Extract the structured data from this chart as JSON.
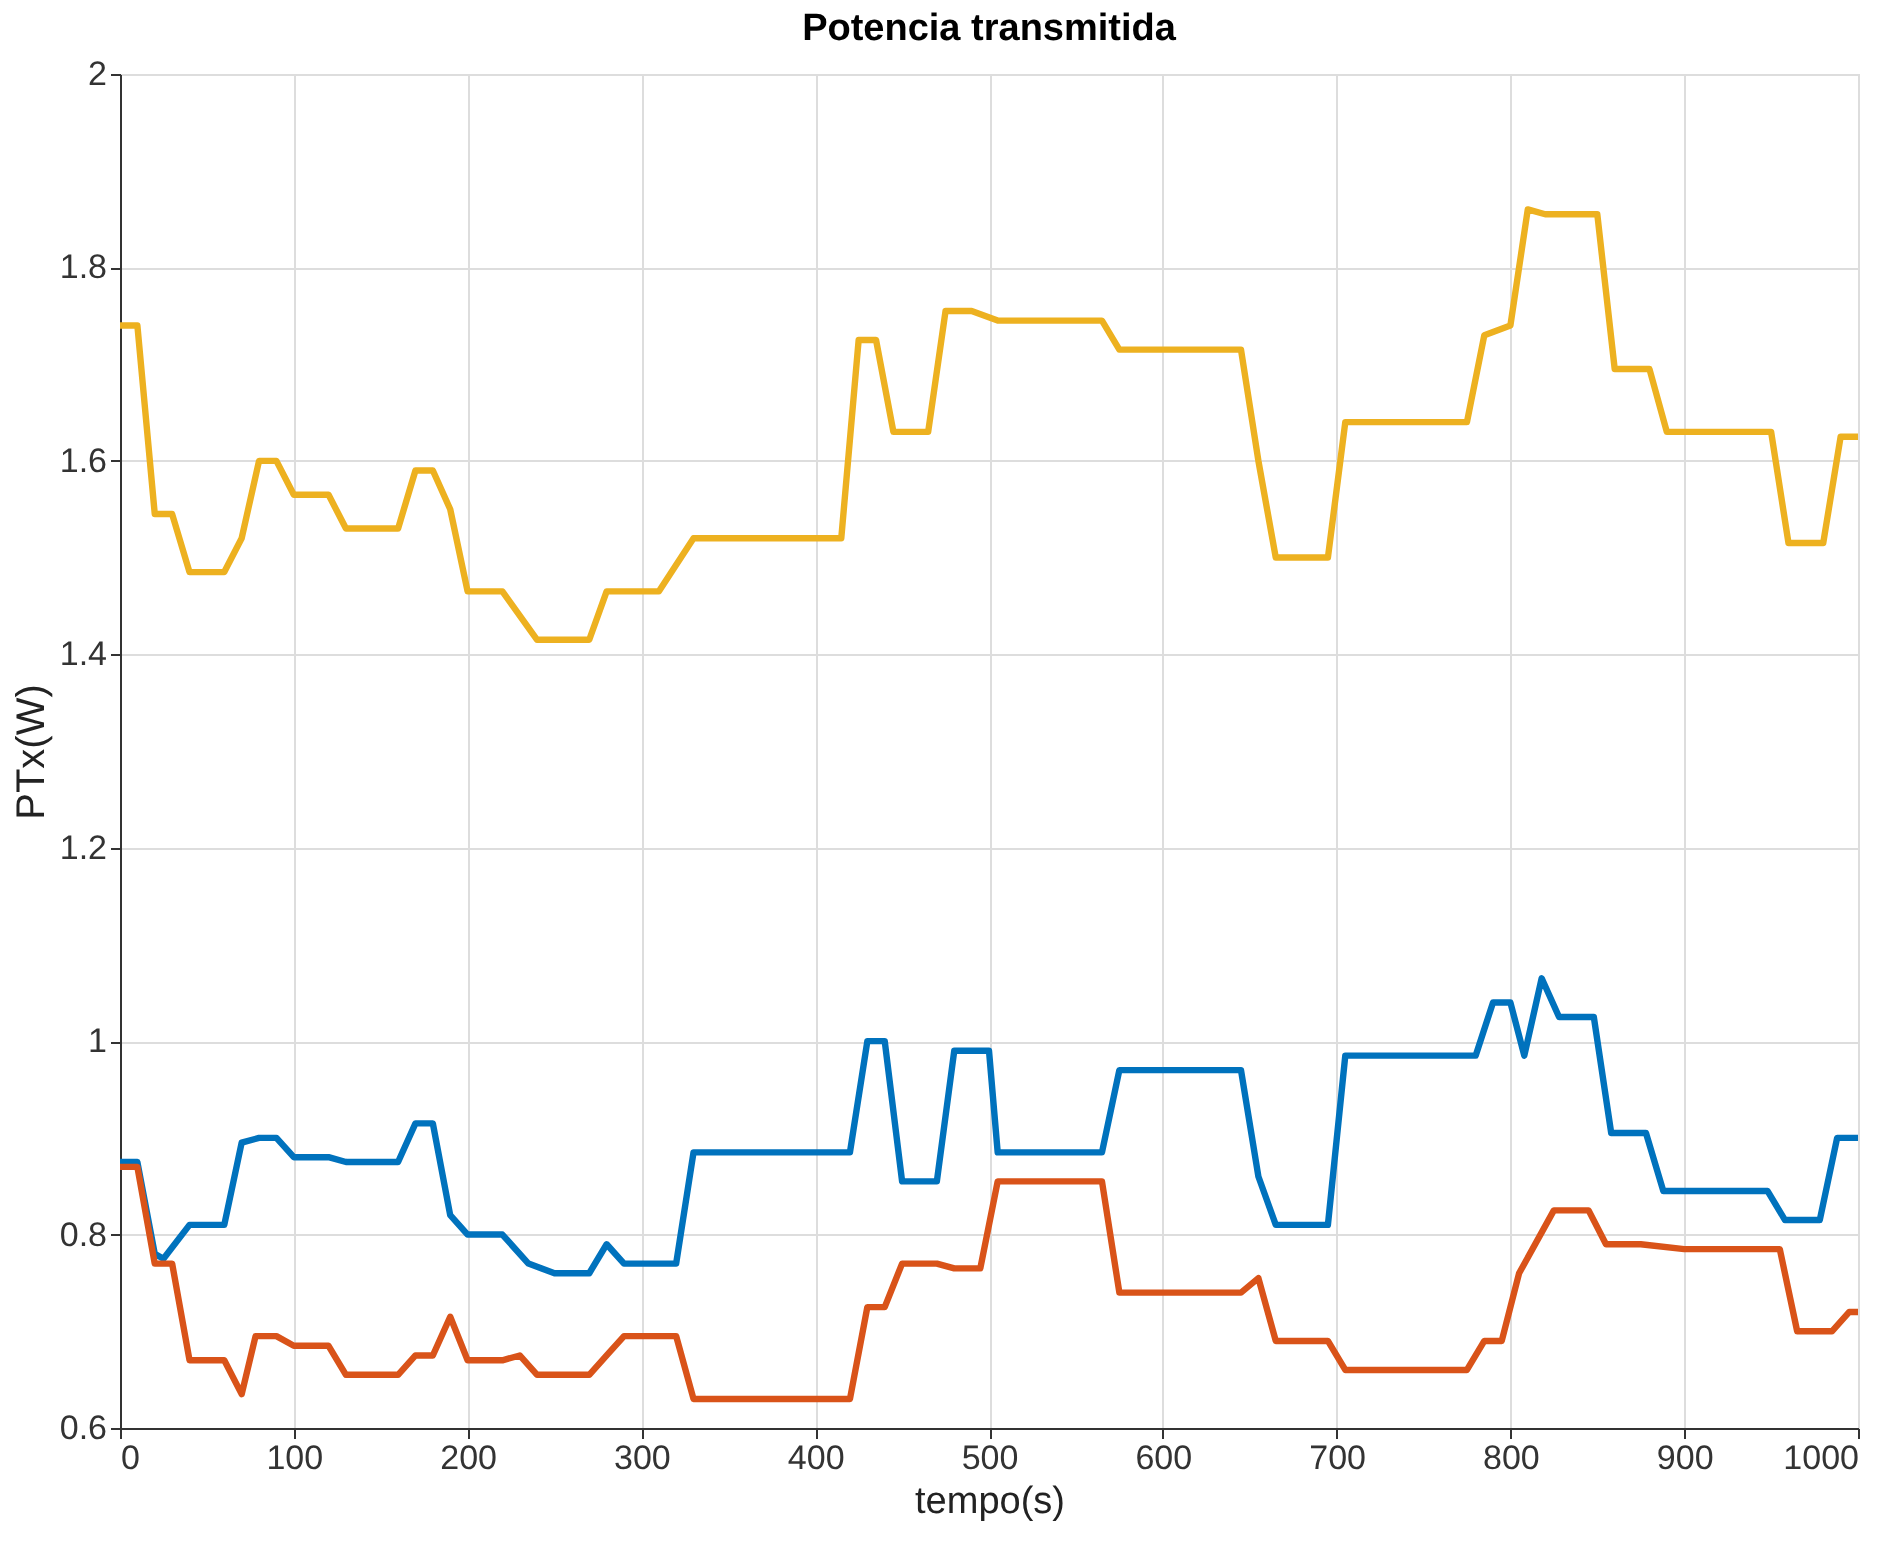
{
  "chart_data": {
    "type": "line",
    "title": "Potencia transmitida",
    "xlabel": "tempo(s)",
    "ylabel": "PTx(W)",
    "xlim": [
      0,
      1000
    ],
    "xticks": [
      0,
      100,
      200,
      300,
      400,
      500,
      600,
      700,
      800,
      900,
      1000
    ],
    "ylim": [
      0.6,
      2
    ],
    "yticks": [
      0.6,
      0.8,
      1,
      1.2,
      1.4,
      1.6,
      1.8,
      2
    ],
    "grid": true,
    "marker": "none",
    "line_style": "solid",
    "series": [
      {
        "color": "#0072bd",
        "x": [
          0,
          10,
          20,
          25,
          40,
          60,
          70,
          80,
          90,
          100,
          120,
          130,
          160,
          170,
          180,
          190,
          200,
          220,
          235,
          250,
          270,
          280,
          290,
          320,
          330,
          420,
          430,
          440,
          450,
          470,
          480,
          500,
          505,
          565,
          575,
          645,
          655,
          665,
          695,
          705,
          780,
          790,
          800,
          808,
          818,
          828,
          848,
          858,
          878,
          888,
          948,
          958,
          978,
          988,
          1000
        ],
        "values": [
          0.875,
          0.875,
          0.78,
          0.775,
          0.81,
          0.81,
          0.895,
          0.9,
          0.9,
          0.88,
          0.88,
          0.875,
          0.875,
          0.915,
          0.915,
          0.82,
          0.8,
          0.8,
          0.77,
          0.76,
          0.76,
          0.79,
          0.77,
          0.77,
          0.885,
          0.885,
          1.0,
          1.0,
          0.855,
          0.855,
          0.99,
          0.99,
          0.885,
          0.885,
          0.97,
          0.97,
          0.86,
          0.81,
          0.81,
          0.985,
          0.985,
          1.04,
          1.04,
          0.985,
          1.065,
          1.025,
          1.025,
          0.905,
          0.905,
          0.845,
          0.845,
          0.815,
          0.815,
          0.9,
          0.9
        ]
      },
      {
        "color": "#d95319",
        "x": [
          0,
          10,
          20,
          30,
          40,
          60,
          70,
          78,
          90,
          100,
          120,
          130,
          160,
          170,
          180,
          190,
          200,
          220,
          230,
          240,
          270,
          280,
          290,
          320,
          330,
          420,
          430,
          440,
          450,
          470,
          480,
          495,
          505,
          565,
          575,
          645,
          655,
          665,
          695,
          705,
          775,
          785,
          795,
          805,
          825,
          845,
          855,
          875,
          900,
          955,
          965,
          985,
          995,
          1000
        ],
        "values": [
          0.87,
          0.87,
          0.77,
          0.77,
          0.67,
          0.67,
          0.635,
          0.695,
          0.695,
          0.685,
          0.685,
          0.655,
          0.655,
          0.675,
          0.675,
          0.715,
          0.67,
          0.67,
          0.675,
          0.655,
          0.655,
          0.675,
          0.695,
          0.695,
          0.63,
          0.63,
          0.725,
          0.725,
          0.77,
          0.77,
          0.765,
          0.765,
          0.855,
          0.855,
          0.74,
          0.74,
          0.755,
          0.69,
          0.69,
          0.66,
          0.66,
          0.69,
          0.69,
          0.76,
          0.825,
          0.825,
          0.79,
          0.79,
          0.785,
          0.785,
          0.7,
          0.7,
          0.72,
          0.72
        ]
      },
      {
        "color": "#edb120",
        "x": [
          0,
          10,
          20,
          30,
          40,
          60,
          70,
          80,
          90,
          100,
          120,
          130,
          160,
          170,
          180,
          190,
          200,
          220,
          240,
          270,
          280,
          310,
          330,
          415,
          425,
          435,
          445,
          465,
          475,
          490,
          505,
          565,
          575,
          645,
          655,
          665,
          695,
          705,
          775,
          785,
          800,
          810,
          820,
          850,
          860,
          880,
          890,
          950,
          960,
          980,
          990,
          1000
        ],
        "values": [
          1.74,
          1.74,
          1.545,
          1.545,
          1.485,
          1.485,
          1.52,
          1.6,
          1.6,
          1.565,
          1.565,
          1.53,
          1.53,
          1.59,
          1.59,
          1.55,
          1.465,
          1.465,
          1.415,
          1.415,
          1.465,
          1.465,
          1.52,
          1.52,
          1.725,
          1.725,
          1.63,
          1.63,
          1.755,
          1.755,
          1.745,
          1.745,
          1.715,
          1.715,
          1.6,
          1.5,
          1.5,
          1.64,
          1.64,
          1.73,
          1.74,
          1.86,
          1.855,
          1.855,
          1.695,
          1.695,
          1.63,
          1.63,
          1.515,
          1.515,
          1.625,
          1.625
        ]
      }
    ]
  }
}
